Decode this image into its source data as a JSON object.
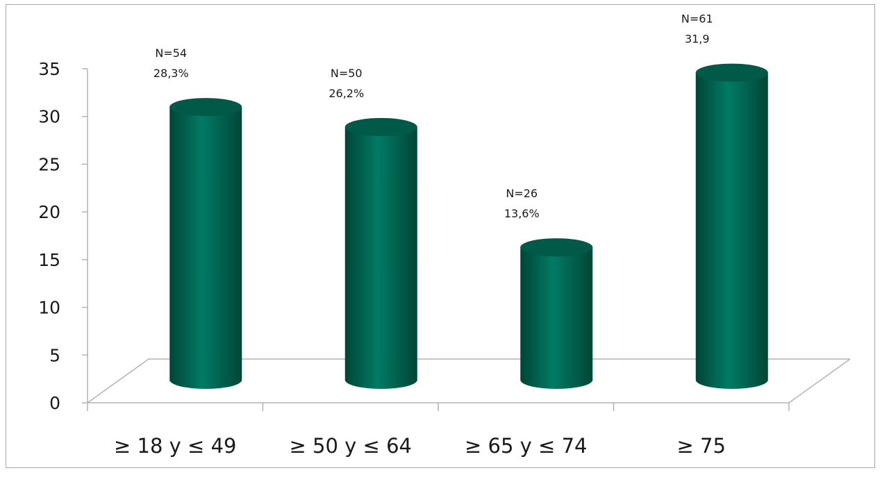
{
  "chart_data": {
    "type": "bar",
    "style": "3d-cylinder",
    "categories": [
      "≥ 18 y ≤ 49",
      "≥ 50 y ≤ 64",
      "≥ 65 y ≤ 74",
      "≥ 75"
    ],
    "values": [
      28.3,
      26.2,
      13.6,
      31.9
    ],
    "data_labels": [
      {
        "n": "N=54",
        "pct": "28,3%"
      },
      {
        "n": "N=50",
        "pct": "26,2%"
      },
      {
        "n": "N=26",
        "pct": "13,6%"
      },
      {
        "n": "N=61",
        "pct": "31,9"
      }
    ],
    "yticks": [
      "0",
      "5",
      "10",
      "15",
      "20",
      "25",
      "30",
      "35"
    ],
    "ylim": [
      0,
      35
    ],
    "title": "",
    "xlabel": "",
    "ylabel": "",
    "grid": false,
    "legend": "none",
    "colors": {
      "bar": "#007b64",
      "bar_dark": "#004536",
      "bar_light": "#1a9477",
      "cap": "#005a47",
      "axis": "#b3b3b3",
      "border": "#a6a6a6"
    }
  }
}
